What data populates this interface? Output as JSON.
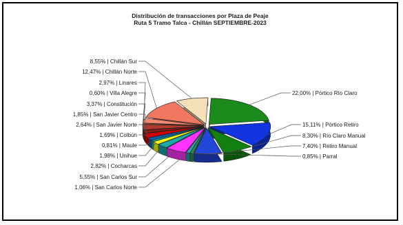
{
  "chart_data": {
    "type": "pie",
    "title": "Distribución de transacciones por Plaza de Peaje",
    "subtitle": "Ruta 5 Tramo Talca - Chillán SEPTIEMBRE-2023",
    "slices": [
      {
        "label": "22,00% | Pórtico Río Claro",
        "name": "Pórtico Río Claro",
        "value": 22.0,
        "color": "#1a8a1a"
      },
      {
        "label": "15,11% | Pórtico Retiro",
        "name": "Pórtico Retiro",
        "value": 15.11,
        "color": "#1034e0"
      },
      {
        "label": "8,30% | Río Claro Manual",
        "name": "Río Claro Manual",
        "value": 8.3,
        "color": "#118011"
      },
      {
        "label": "7,40% | Retiro Manual",
        "name": "Retiro Manual",
        "value": 7.4,
        "color": "#2146d8"
      },
      {
        "label": "0,85% | Parral",
        "name": "Parral",
        "value": 0.85,
        "color": "#2e8b57"
      },
      {
        "label": "1,06% | San Carlos Norte",
        "name": "San Carlos Norte",
        "value": 1.06,
        "color": "#2aa0a0"
      },
      {
        "label": "5,55% | San Carlos Sur",
        "name": "San Carlos Sur",
        "value": 5.55,
        "color": "#ff33ff"
      },
      {
        "label": "2,82% | Cocharcas",
        "name": "Cocharcas",
        "value": 2.82,
        "color": "#1fa8a8"
      },
      {
        "label": "1,98% | Unihue",
        "name": "Unihue",
        "value": 1.98,
        "color": "#ffff00"
      },
      {
        "label": "0,81% | Maule",
        "name": "Maule",
        "value": 0.81,
        "color": "#00c0c0"
      },
      {
        "label": "1,69% | Colbún",
        "name": "Colbún",
        "value": 1.69,
        "color": "#0a5fa8"
      },
      {
        "label": "2,64% | San Javier Norte",
        "name": "San Javier Norte",
        "value": 2.64,
        "color": "#d40000"
      },
      {
        "label": "1,85% | San Javier Centro",
        "name": "San Javier Centro",
        "value": 1.85,
        "color": "#8b1a1a"
      },
      {
        "label": "3,37% | Constitución",
        "name": "Constitución",
        "value": 3.37,
        "color": "#b03a2e"
      },
      {
        "label": "0,60% | Villa Alegre",
        "name": "Villa Alegre",
        "value": 0.6,
        "color": "#e06040"
      },
      {
        "label": "2,97% | Linares",
        "name": "Linares",
        "value": 2.97,
        "color": "#f08a70"
      },
      {
        "label": "12,47% | Chillán Norte",
        "name": "Chillán Norte",
        "value": 12.47,
        "color": "#f07860"
      },
      {
        "label": "8,55% | Chillán Sur",
        "name": "Chillán Sur",
        "value": 8.55,
        "color": "#f5dfb8"
      }
    ],
    "colors": {
      "background": "#ffffff",
      "border": "#000000"
    }
  }
}
